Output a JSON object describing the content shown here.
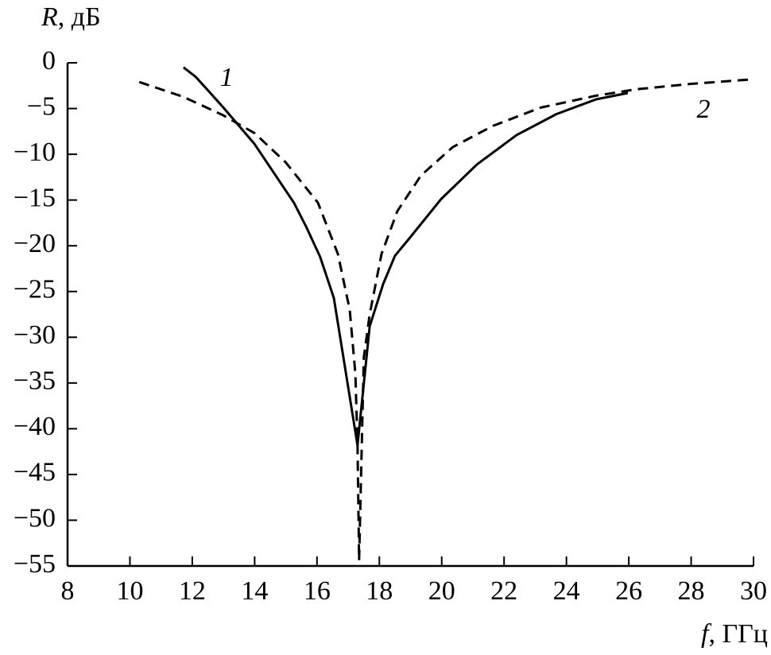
{
  "chart_data": {
    "type": "line",
    "ylabel": {
      "symbol": "R",
      "text": ", дБ"
    },
    "xlabel": {
      "symbol": "f",
      "text": ", ГГц"
    },
    "xlim": [
      8,
      30
    ],
    "ylim": [
      -55,
      0
    ],
    "xticks": [
      8,
      10,
      12,
      14,
      16,
      18,
      20,
      22,
      24,
      26,
      28,
      30
    ],
    "yticks": [
      0,
      {
        "value": -5,
        "label": "−5"
      },
      {
        "value": -10,
        "label": "−10"
      },
      {
        "value": -15,
        "label": "−15"
      },
      {
        "value": -20,
        "label": "−20"
      },
      {
        "value": -25,
        "label": "−25"
      },
      {
        "value": -30,
        "label": "−30"
      },
      {
        "value": -35,
        "label": "−35"
      },
      {
        "value": -40,
        "label": "−40"
      },
      {
        "value": -45,
        "label": "−45"
      },
      {
        "value": -50,
        "label": "−50"
      },
      {
        "value": -55,
        "label": "−55"
      }
    ],
    "series": [
      {
        "name": "1",
        "color": "#000000",
        "dash": false,
        "x": [
          11.72,
          12.1,
          12.5,
          13.0,
          14.0,
          15.26,
          15.65,
          16.1,
          16.54,
          17.3,
          17.69,
          18.12,
          18.5,
          18.96,
          19.98,
          21.13,
          22.4,
          23.68,
          24.95,
          25.97
        ],
        "values": [
          -0.5,
          -1.5,
          -3,
          -4.9,
          -8.9,
          -15.3,
          -17.9,
          -21.2,
          -25.7,
          -41.8,
          -28.8,
          -24.2,
          -21.1,
          -19.2,
          -14.9,
          -11.1,
          -7.9,
          -5.6,
          -4.0,
          -3.3
        ]
      },
      {
        "name": "2",
        "color": "#000000",
        "dash": true,
        "x": [
          10.3,
          11.7,
          12.97,
          14.0,
          15.0,
          16.03,
          16.67,
          17.05,
          17.23,
          17.3,
          17.35,
          17.5,
          17.69,
          18.07,
          18.58,
          19.34,
          20.36,
          21.64,
          23.17,
          24.95,
          26.23,
          28.0,
          30.0
        ],
        "values": [
          -2.1,
          -3.7,
          -5.7,
          -7.7,
          -10.9,
          -15.3,
          -20.9,
          -27.0,
          -34.0,
          -41.8,
          -54.4,
          -32.2,
          -27.5,
          -20.9,
          -16.2,
          -12.3,
          -9.2,
          -6.9,
          -4.9,
          -3.6,
          -2.9,
          -2.3,
          -1.8
        ]
      }
    ]
  }
}
